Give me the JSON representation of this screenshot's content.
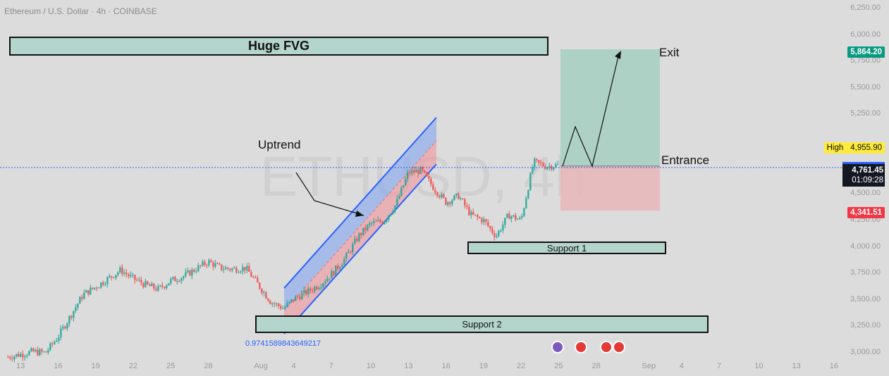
{
  "header": {
    "title": "Ethereum / U.S. Dollar · 4h · COINBASE"
  },
  "watermark": "ETHUSD, 4h",
  "annotations": {
    "fvg": "Huge FVG",
    "uptrend": "Uptrend",
    "exit": "Exit",
    "entrance": "Entrance",
    "support1": "Support 1",
    "support2": "Support 2",
    "fib_value": "0.9741589843649217"
  },
  "price_tags": {
    "target": "5,864.20",
    "high_label": "High",
    "high_value": "4,955.90",
    "current": "4,761.45",
    "countdown": "01:09:28",
    "stop": "4,341.51"
  },
  "colors": {
    "background": "#dcdcdc",
    "up_candle": "#26a69a",
    "down_candle": "#ef5350",
    "target_tag": "#089981",
    "stop_tag": "#f23645",
    "channel_blue": "#2962ff",
    "zone_fill": "#b4d5cc",
    "high_tag": "#ffeb3b"
  },
  "chart_data": {
    "type": "candlestick",
    "title": "Ethereum / U.S. Dollar · 4h · COINBASE",
    "x_ticks": [
      "13",
      "16",
      "19",
      "22",
      "25",
      "28",
      "Aug",
      "4",
      "7",
      "10",
      "13",
      "16",
      "19",
      "22",
      "25",
      "28",
      "Sep",
      "4",
      "7",
      "10",
      "13",
      "16"
    ],
    "y_ticks": [
      "6,250.00",
      "6,000.00",
      "5,750.00",
      "5,500.00",
      "5,250.00",
      "4,750.00",
      "4,500.00",
      "4,250.00",
      "4,000.00",
      "3,750.00",
      "3,500.00",
      "3,250.00",
      "3,000.00"
    ],
    "y_range": [
      2980,
      6280
    ],
    "price_path": [
      {
        "date": "Jul 12",
        "price": 2960
      },
      {
        "date": "Jul 14",
        "price": 3010
      },
      {
        "date": "Jul 15",
        "price": 3000
      },
      {
        "date": "Jul 16",
        "price": 3150
      },
      {
        "date": "Jul 17",
        "price": 3350
      },
      {
        "date": "Jul 18",
        "price": 3550
      },
      {
        "date": "Jul 19",
        "price": 3620
      },
      {
        "date": "Jul 20",
        "price": 3700
      },
      {
        "date": "Jul 21",
        "price": 3780
      },
      {
        "date": "Jul 22",
        "price": 3700
      },
      {
        "date": "Jul 23",
        "price": 3640
      },
      {
        "date": "Jul 24",
        "price": 3600
      },
      {
        "date": "Jul 25",
        "price": 3680
      },
      {
        "date": "Jul 26",
        "price": 3720
      },
      {
        "date": "Jul 27",
        "price": 3790
      },
      {
        "date": "Jul 28",
        "price": 3860
      },
      {
        "date": "Jul 29",
        "price": 3800
      },
      {
        "date": "Jul 30",
        "price": 3790
      },
      {
        "date": "Jul 31",
        "price": 3800
      },
      {
        "date": "Aug 1",
        "price": 3640
      },
      {
        "date": "Aug 2",
        "price": 3480
      },
      {
        "date": "Aug 3",
        "price": 3420
      },
      {
        "date": "Aug 4",
        "price": 3520
      },
      {
        "date": "Aug 5",
        "price": 3580
      },
      {
        "date": "Aug 6",
        "price": 3650
      },
      {
        "date": "Aug 7",
        "price": 3760
      },
      {
        "date": "Aug 8",
        "price": 3900
      },
      {
        "date": "Aug 9",
        "price": 4100
      },
      {
        "date": "Aug 10",
        "price": 4220
      },
      {
        "date": "Aug 11",
        "price": 4240
      },
      {
        "date": "Aug 12",
        "price": 4400
      },
      {
        "date": "Aug 13",
        "price": 4700
      },
      {
        "date": "Aug 14",
        "price": 4720
      },
      {
        "date": "Aug 15",
        "price": 4560
      },
      {
        "date": "Aug 16",
        "price": 4420
      },
      {
        "date": "Aug 17",
        "price": 4480
      },
      {
        "date": "Aug 18",
        "price": 4300
      },
      {
        "date": "Aug 19",
        "price": 4250
      },
      {
        "date": "Aug 20",
        "price": 4100
      },
      {
        "date": "Aug 21",
        "price": 4300
      },
      {
        "date": "Aug 22",
        "price": 4250
      },
      {
        "date": "Aug 23",
        "price": 4800
      },
      {
        "date": "Aug 24",
        "price": 4760
      },
      {
        "date": "Aug 25",
        "price": 4770
      }
    ],
    "zones": {
      "huge_fvg": {
        "from": "Jul 11",
        "to": "Aug 26",
        "low": 5840,
        "high": 6000
      },
      "support_1": {
        "from": "Aug 16",
        "to": "Sep 1",
        "low": 3950,
        "high": 4060
      },
      "support_2": {
        "from": "Aug 1",
        "to": "Sep 5",
        "low": 3210,
        "high": 3330
      }
    },
    "position": {
      "entry": 4761.45,
      "target": 5864.2,
      "stop": 4341.51
    },
    "high": 4955.9,
    "current": 4761.45
  }
}
